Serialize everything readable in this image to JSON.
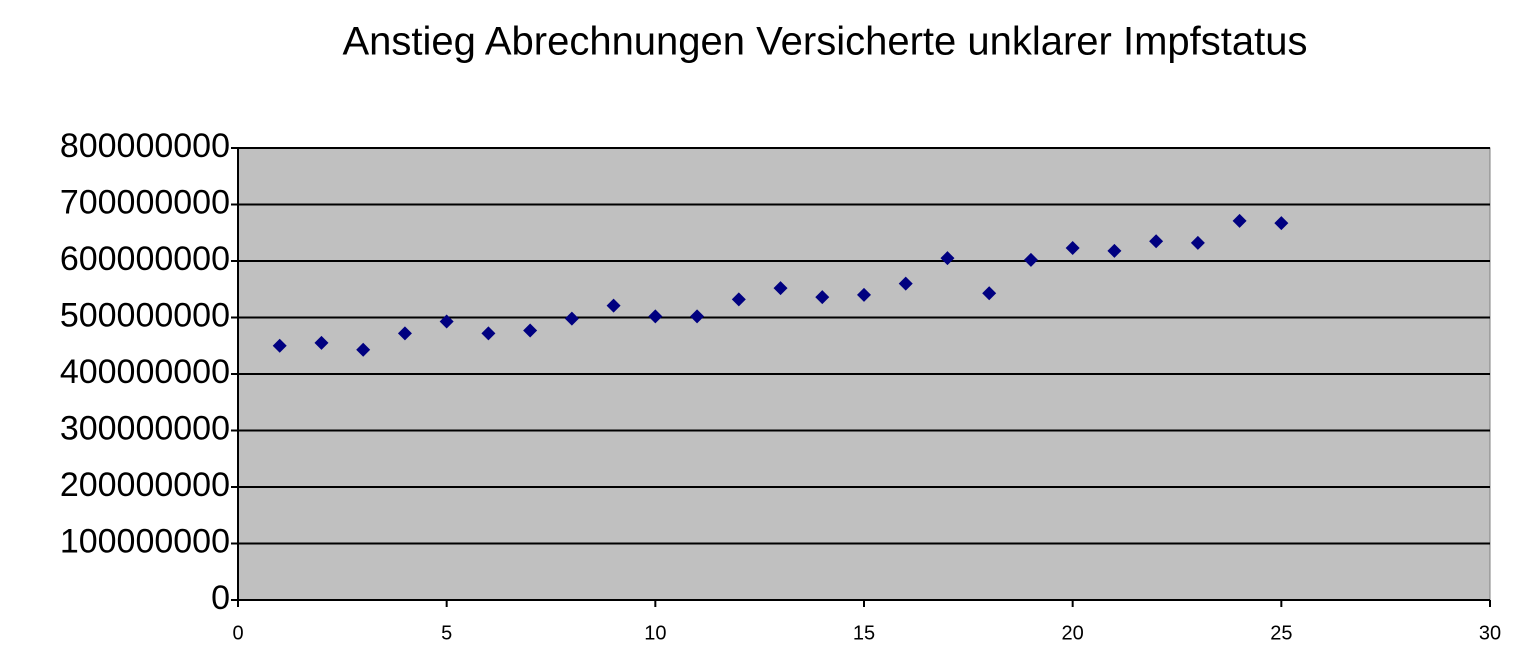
{
  "chart_data": {
    "type": "scatter",
    "title": "Anstieg Abrechnungen  Versicherte unklarer Impfstatus",
    "x": [
      1,
      2,
      3,
      4,
      5,
      6,
      7,
      8,
      9,
      10,
      11,
      12,
      13,
      14,
      15,
      16,
      17,
      18,
      19,
      20,
      21,
      22,
      23,
      24,
      25
    ],
    "values": [
      450000000,
      455000000,
      443000000,
      472000000,
      493000000,
      472000000,
      477000000,
      498000000,
      521000000,
      502000000,
      502000000,
      532000000,
      552000000,
      536000000,
      540000000,
      560000000,
      605000000,
      543000000,
      602000000,
      623000000,
      618000000,
      635000000,
      632000000,
      671000000,
      667000000
    ],
    "color": "#000080",
    "background": "#c0c0c0",
    "xlim": [
      0,
      30
    ],
    "xticks": [
      0,
      5,
      10,
      15,
      20,
      25,
      30
    ],
    "ylim": [
      0,
      800000000
    ],
    "yticks": [
      0,
      100000000,
      200000000,
      300000000,
      400000000,
      500000000,
      600000000,
      700000000,
      800000000
    ],
    "grid": true
  }
}
